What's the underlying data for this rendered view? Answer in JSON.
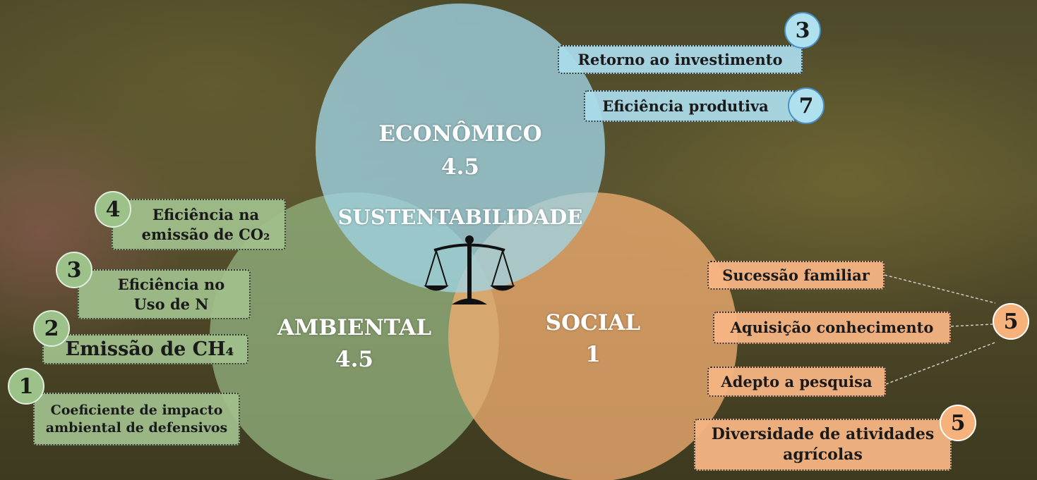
{
  "center": "SUSTENTABILIDADE",
  "economico": {
    "label": "ECONÔMICO",
    "score": 4.5,
    "indicators": [
      {
        "lines": [
          "Retorno ao investimento"
        ],
        "score": 3
      },
      {
        "lines": [
          "Eficiência produtiva"
        ],
        "score": 7
      }
    ]
  },
  "ambiental": {
    "label": "AMBIENTAL",
    "score": 4.5,
    "indicators": [
      {
        "lines": [
          "Eficiência na",
          "emissão de CO₂"
        ],
        "score": 4
      },
      {
        "lines": [
          "Eficiência no",
          "Uso de N"
        ],
        "score": 3
      },
      {
        "lines": [
          "Emissão de CH₄"
        ],
        "score": 2
      },
      {
        "lines": [
          "Coeficiente de impacto",
          "ambiental de defensivos"
        ],
        "score": 1
      }
    ]
  },
  "social": {
    "label": "SOCIAL",
    "score": 1,
    "groups": [
      {
        "items": [
          "Sucessão familiar",
          "Aquisição conhecimento",
          "Adepto a pesquisa"
        ],
        "score": 5
      },
      {
        "items": [
          "Diversidade de atividades",
          "agrícolas"
        ],
        "score": 5
      }
    ]
  }
}
